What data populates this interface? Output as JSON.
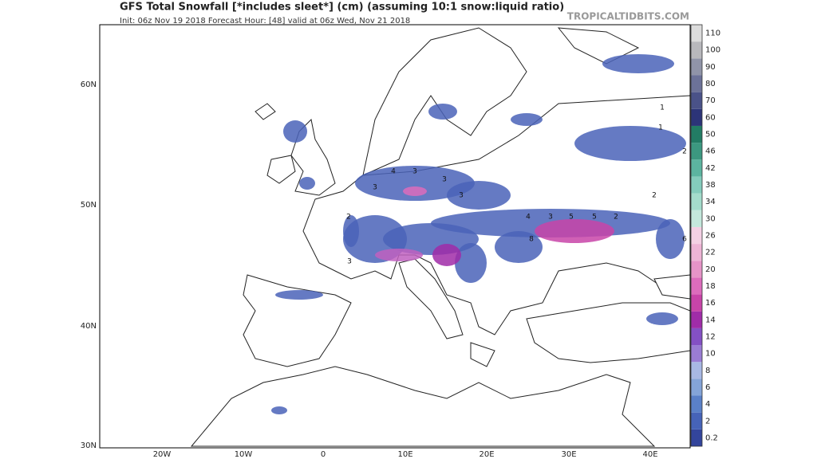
{
  "header": {
    "title": "GFS Total Snowfall [*includes sleet*] (cm) (assuming 10:1 snow:liquid ratio)",
    "subtitle": "Init: 06z Nov 19 2018   Forecast Hour: [48]   valid at 06z Wed, Nov 21 2018",
    "watermark": "TROPICALTIDBITS.COM"
  },
  "map": {
    "lat_labels": [
      "60N",
      "50N",
      "40N",
      "30N"
    ],
    "lon_labels": [
      "20W",
      "10W",
      "0",
      "10E",
      "20E",
      "30E",
      "40E"
    ],
    "contour_labels": [
      "4",
      "3",
      "3",
      "2",
      "3",
      "3",
      "4",
      "3",
      "5",
      "2",
      "5",
      "6",
      "1",
      "1",
      "2",
      "2",
      "3",
      "8"
    ]
  },
  "legend": {
    "items": [
      {
        "label": 0.2,
        "color": "#33459c"
      },
      {
        "label": 2,
        "color": "#4663b8"
      },
      {
        "label": 4,
        "color": "#5a80c8"
      },
      {
        "label": 6,
        "color": "#84a4d8"
      },
      {
        "label": 8,
        "color": "#a8b8e4"
      },
      {
        "label": 10,
        "color": "#9a7cd4"
      },
      {
        "label": 12,
        "color": "#8450c4"
      },
      {
        "label": 14,
        "color": "#a02ca8"
      },
      {
        "label": 16,
        "color": "#c844a8"
      },
      {
        "label": 18,
        "color": "#dc6cbc"
      },
      {
        "label": 20,
        "color": "#e694c8"
      },
      {
        "label": 22,
        "color": "#eeb4d6"
      },
      {
        "label": 26,
        "color": "#f4d0e4"
      },
      {
        "label": 30,
        "color": "#c4e8dc"
      },
      {
        "label": 34,
        "color": "#a4dccc"
      },
      {
        "label": 38,
        "color": "#84ccbc"
      },
      {
        "label": 42,
        "color": "#5cb4a0"
      },
      {
        "label": 46,
        "color": "#3c9880"
      },
      {
        "label": 50,
        "color": "#227c64"
      },
      {
        "label": 60,
        "color": "#2c3478"
      },
      {
        "label": 70,
        "color": "#4a5288"
      },
      {
        "label": 80,
        "color": "#6c7298"
      },
      {
        "label": 90,
        "color": "#9094a8"
      },
      {
        "label": 100,
        "color": "#b8b8bc"
      },
      {
        "label": 110,
        "color": "#dcdcdc"
      }
    ]
  }
}
